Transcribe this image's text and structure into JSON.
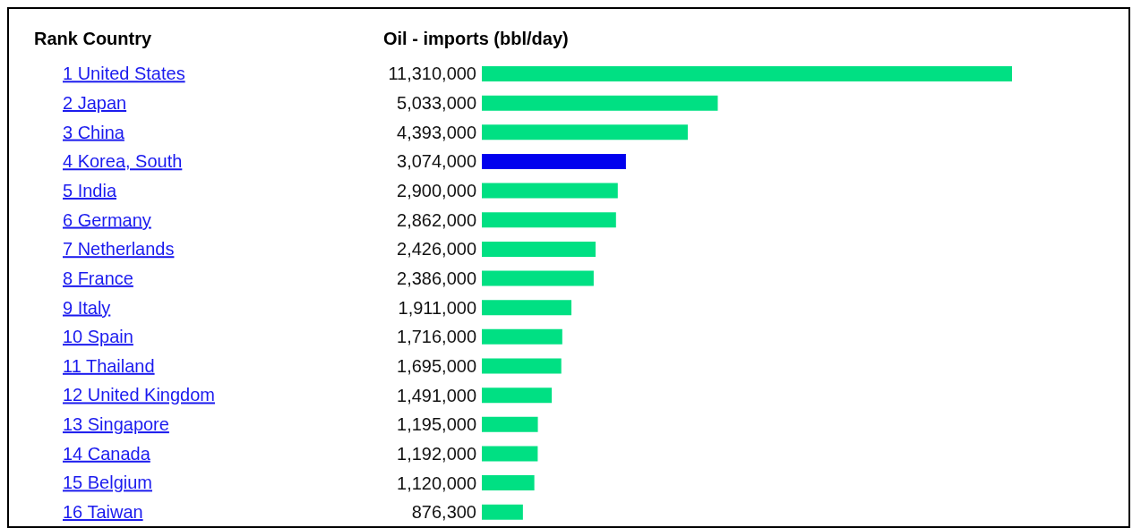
{
  "chart_data": {
    "type": "bar",
    "orientation": "horizontal",
    "title": "Oil - imports (bbl/day)",
    "ylabel": "Rank Country",
    "categories": [
      "1 United States",
      "2 Japan",
      "3 China",
      "4 Korea, South",
      "5 India",
      "6 Germany",
      "7 Netherlands",
      "8 France",
      "9 Italy",
      "10 Spain",
      "11 Thailand",
      "12 United Kingdom",
      "13 Singapore",
      "14 Canada",
      "15 Belgium",
      "16 Taiwan"
    ],
    "values": [
      11310000,
      5033000,
      4393000,
      3074000,
      2900000,
      2862000,
      2426000,
      2386000,
      1911000,
      1716000,
      1695000,
      1491000,
      1195000,
      1192000,
      1120000,
      876300
    ],
    "value_labels": [
      "11,310,000",
      "5,033,000",
      "4,393,000",
      "3,074,000",
      "2,900,000",
      "2,862,000",
      "2,426,000",
      "2,386,000",
      "1,911,000",
      "1,716,000",
      "1,695,000",
      "1,491,000",
      "1,195,000",
      "1,192,000",
      "1,120,000",
      "876,300"
    ],
    "colors": [
      "#00e083",
      "#00e083",
      "#00e083",
      "#0000ee",
      "#00e083",
      "#00e083",
      "#00e083",
      "#00e083",
      "#00e083",
      "#00e083",
      "#00e083",
      "#00e083",
      "#00e083",
      "#00e083",
      "#00e083",
      "#00e083"
    ],
    "data_labels": false
  }
}
